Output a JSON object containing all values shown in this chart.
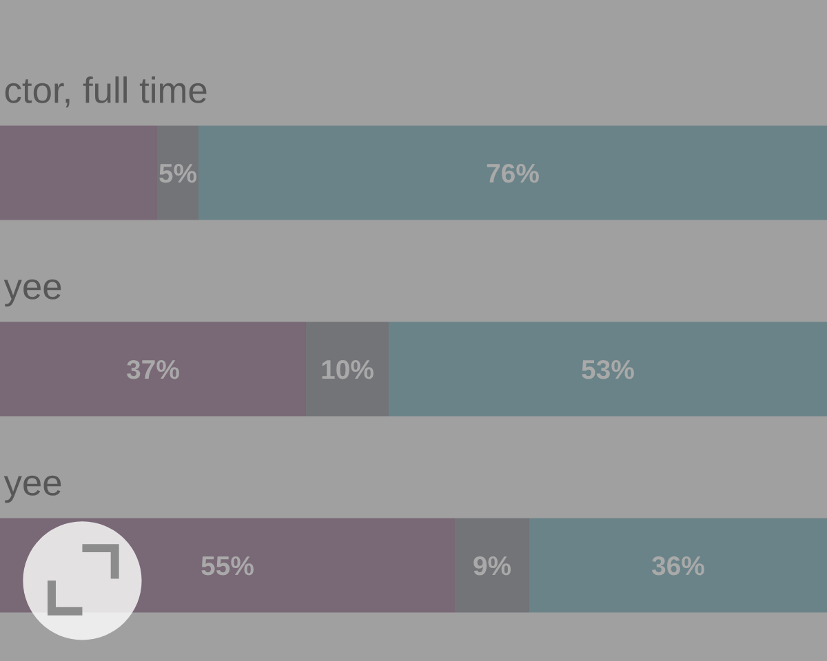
{
  "chart_data": {
    "type": "bar",
    "orientation": "horizontal",
    "stacked": true,
    "categories": [
      "ctor, full time",
      "yee",
      "yee"
    ],
    "series": [
      {
        "color": "#796876",
        "values": [
          19,
          37,
          55
        ],
        "value_labels": [
          null,
          "37%",
          "55%"
        ]
      },
      {
        "color": "#737478",
        "values": [
          5,
          10,
          9
        ],
        "value_labels": [
          "5%",
          "10%",
          "9%"
        ]
      },
      {
        "color": "#6a8388",
        "values": [
          76,
          53,
          36
        ],
        "value_labels": [
          "76%",
          "53%",
          "36%"
        ]
      }
    ],
    "xlim": [
      0,
      100
    ],
    "tick_labels": "y"
  }
}
